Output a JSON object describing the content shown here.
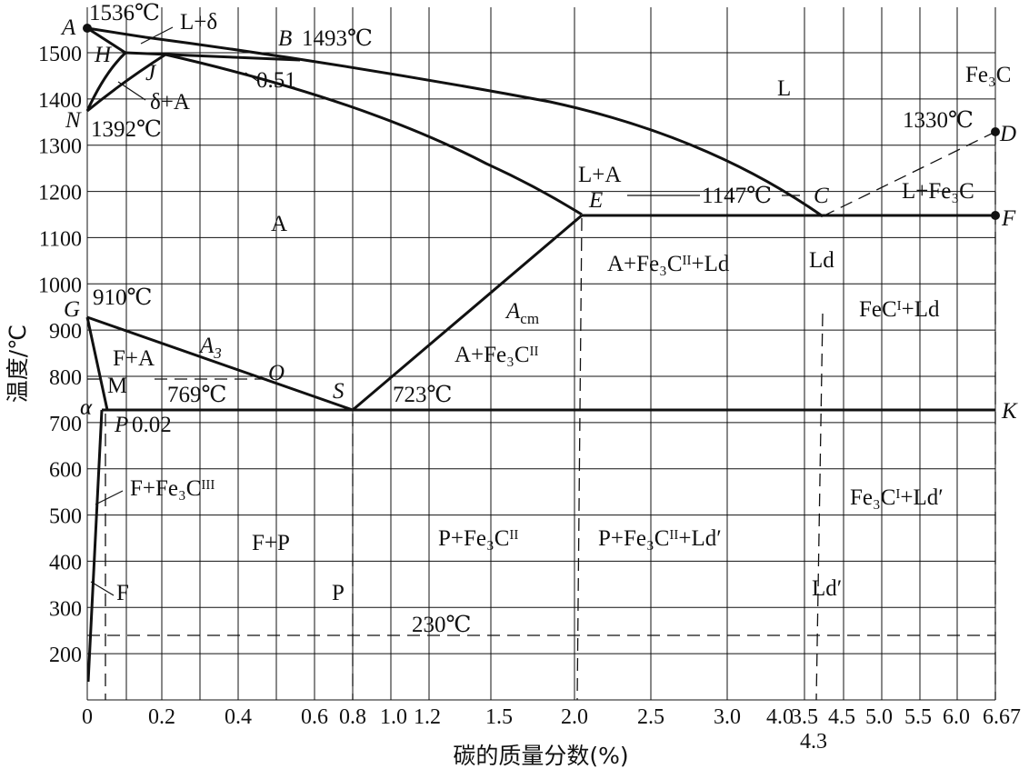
{
  "axes": {
    "ylabel": "温度/℃",
    "xlabel": "碳的质量分数(%)",
    "y_ticks": [
      "200",
      "300",
      "400",
      "500",
      "600",
      "700",
      "800",
      "900",
      "1000",
      "1100",
      "1200",
      "1300",
      "1400",
      "1500"
    ],
    "x_ticks": [
      "0",
      "0.2",
      "0.4",
      "0.6",
      "0.8",
      "1.0",
      "1.2",
      "1.5",
      "2.0",
      "2.5",
      "3.0",
      "3.5",
      "4.0",
      "4.5",
      "5.0",
      "5.5",
      "6.0",
      "6.67"
    ],
    "x_extra_tick": "4.3"
  },
  "points": {
    "A": "A",
    "A_temp": "1536℃",
    "B": "B",
    "B_temp": "1493℃",
    "H": "H",
    "J": "J",
    "N": "N",
    "N_temp": "1392℃",
    "C": "C",
    "C_temp": "1147℃",
    "D": "D",
    "D_temp": "1330℃",
    "E": "E",
    "F": "F",
    "G": "G",
    "G_temp": "910℃",
    "S": "S",
    "S_temp": "723℃",
    "K": "K",
    "O": "O",
    "P": "P",
    "P_value": "0.02",
    "alpha": "α",
    "M": "M",
    "M_temp": "769℃",
    "J_value": "0.51",
    "A3": "A",
    "A3_sub": "3",
    "Acm": "A",
    "Acm_sub": "cm",
    "T230": "230℃"
  },
  "regions": {
    "L_delta": "L+δ",
    "delta_A": "δ+A",
    "L": "L",
    "Fe3C": "Fe₃C",
    "L_A": "L+A",
    "L_Fe3C": "L+Fe₃C",
    "A": "A",
    "A_Fe3CII_Ld": "A+Fe₃Cᴵᴵ+Ld",
    "Ld": "Ld",
    "FeCI_Ld": "FeCᴵ+Ld",
    "F_A": "F+A",
    "A_Fe3CII": "A+Fe₃Cᴵᴵ",
    "F_Fe3CIII": "F+Fe₃Cᴵᴵᴵ",
    "Fe3CI_Ld2": "Fe₃Cᴵ+Ld′",
    "F_P": "F+P",
    "P_Fe3CII": "P+Fe₃Cᴵᴵ",
    "P_Fe3CII_Ld2": "P+Fe₃Cᴵᴵ+Ld′",
    "F": "F",
    "P": "P",
    "Ld2": "Ld′"
  },
  "chart_data": {
    "type": "phase-diagram",
    "x_unit": "%C",
    "y_unit": "℃",
    "ylim": [
      100,
      1550
    ],
    "xlim": [
      0,
      6.67
    ],
    "key_points": {
      "A": [
        0,
        1536
      ],
      "B": [
        0.51,
        1493
      ],
      "H": [
        0.09,
        1493
      ],
      "J": [
        0.17,
        1493
      ],
      "N": [
        0,
        1392
      ],
      "C": [
        4.3,
        1147
      ],
      "D": [
        6.67,
        1330
      ],
      "E": [
        2.11,
        1147
      ],
      "F": [
        6.67,
        1147
      ],
      "G": [
        0,
        910
      ],
      "S": [
        0.77,
        723
      ],
      "K": [
        6.67,
        723
      ],
      "P": [
        0.0218,
        723
      ]
    }
  }
}
